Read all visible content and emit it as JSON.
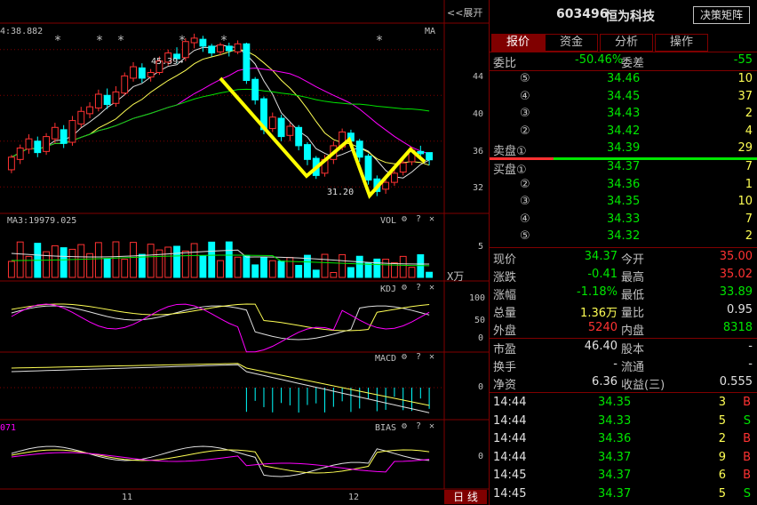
{
  "stock": {
    "code": "603496",
    "name": "恒为科技",
    "decision_button": "决策矩阵"
  },
  "expand_button": "<<展开",
  "tabs": [
    {
      "label": "报价",
      "active": true
    },
    {
      "label": "资金",
      "active": false
    },
    {
      "label": "分析",
      "active": false
    },
    {
      "label": "操作",
      "active": false
    }
  ],
  "weibi": {
    "label": "委比",
    "value": "-50.46%",
    "diff_label": "委差",
    "diff_value": "-55"
  },
  "sell_orders": [
    {
      "label": "⑤",
      "price": "34.46",
      "volume": "10"
    },
    {
      "label": "④",
      "price": "34.45",
      "volume": "37"
    },
    {
      "label": "③",
      "price": "34.43",
      "volume": "2"
    },
    {
      "label": "②",
      "price": "34.42",
      "volume": "4"
    },
    {
      "label": "卖盘①",
      "price": "34.39",
      "volume": "29"
    }
  ],
  "buy_orders": [
    {
      "label": "买盘①",
      "price": "34.37",
      "volume": "7"
    },
    {
      "label": "②",
      "price": "34.36",
      "volume": "1"
    },
    {
      "label": "③",
      "price": "34.35",
      "volume": "10"
    },
    {
      "label": "④",
      "price": "34.33",
      "volume": "7"
    },
    {
      "label": "⑤",
      "price": "34.32",
      "volume": "2"
    }
  ],
  "quote": [
    {
      "l1": "现价",
      "v1": "34.37",
      "c1": "green",
      "l2": "今开",
      "v2": "35.00",
      "c2": "red"
    },
    {
      "l1": "涨跌",
      "v1": "-0.41",
      "c1": "green",
      "l2": "最高",
      "v2": "35.02",
      "c2": "red"
    },
    {
      "l1": "涨幅",
      "v1": "-1.18%",
      "c1": "green",
      "l2": "最低",
      "v2": "33.89",
      "c2": "green"
    },
    {
      "l1": "总量",
      "v1": "1.36万",
      "c1": "yellow",
      "l2": "量比",
      "v2": "0.95",
      "c2": "white"
    },
    {
      "l1": "外盘",
      "v1": "5240",
      "c1": "red",
      "l2": "内盘",
      "v2": "8318",
      "c2": "green"
    }
  ],
  "fundamentals": [
    {
      "l1": "市盈",
      "v1": "46.40",
      "l2": "股本",
      "v2": "-"
    },
    {
      "l1": "换手",
      "v1": "-",
      "l2": "流通",
      "v2": "-"
    },
    {
      "l1": "净资",
      "v1": "6.36",
      "l2": "收益(三)",
      "v2": "0.555"
    }
  ],
  "ticks": [
    {
      "time": "14:44",
      "price": "34.35",
      "vol": "3",
      "side": "B"
    },
    {
      "time": "14:44",
      "price": "34.33",
      "vol": "5",
      "side": "S"
    },
    {
      "time": "14:44",
      "price": "34.36",
      "vol": "2",
      "side": "B"
    },
    {
      "time": "14:44",
      "price": "34.37",
      "vol": "9",
      "side": "B"
    },
    {
      "time": "14:45",
      "price": "34.37",
      "vol": "6",
      "side": "B"
    },
    {
      "time": "14:45",
      "price": "34.37",
      "vol": "5",
      "side": "S"
    }
  ],
  "chart": {
    "top_left": "4:38.882",
    "top_right": "MA",
    "high_label": "45.39→",
    "low_label": "31.20",
    "price_axis": [
      "44",
      "40",
      "36",
      "32"
    ],
    "vol_label": "MA3:19979.025",
    "vol_name": "VOL",
    "vol_axis": [
      "5"
    ],
    "vol_unit": "X万",
    "kdj_name": "KDJ",
    "kdj_axis": [
      "100",
      "50",
      "0"
    ],
    "macd_name": "MACD",
    "macd_axis": [
      "0"
    ],
    "bias_label": "071",
    "bias_name": "BIAS",
    "bias_axis": [
      "0"
    ],
    "x_labels": [
      "11",
      "12"
    ],
    "period_button": "日 线",
    "gear_icon": "⚙",
    "help_icon": "?",
    "close_icon": "✕"
  },
  "chart_data": {
    "type": "candlestick",
    "price_ylim": [
      30,
      46
    ],
    "candles": [
      [
        33.5,
        34.6,
        33.2,
        34.8
      ],
      [
        34.4,
        35.4,
        34.0,
        35.7
      ],
      [
        35.3,
        36.2,
        34.9,
        36.6
      ],
      [
        36.0,
        35.0,
        34.6,
        36.4
      ],
      [
        35.1,
        36.4,
        34.8,
        36.7
      ],
      [
        36.2,
        37.2,
        35.8,
        37.6
      ],
      [
        37.0,
        35.8,
        35.4,
        37.4
      ],
      [
        35.9,
        37.8,
        35.6,
        38.2
      ],
      [
        37.5,
        38.6,
        37.2,
        39.0
      ],
      [
        38.4,
        39.0,
        38.0,
        39.4
      ],
      [
        38.9,
        40.1,
        38.6,
        40.5
      ],
      [
        40.0,
        39.2,
        38.8,
        40.6
      ],
      [
        39.3,
        40.3,
        39.0,
        40.8
      ],
      [
        40.2,
        41.7,
        40.0,
        42.0
      ],
      [
        41.5,
        42.5,
        41.2,
        42.9
      ],
      [
        42.4,
        41.5,
        41.1,
        42.8
      ],
      [
        41.6,
        42.0,
        41.2,
        42.3
      ],
      [
        42.0,
        43.0,
        41.8,
        43.4
      ],
      [
        42.9,
        43.7,
        42.6,
        44.0
      ],
      [
        43.6,
        43.2,
        42.8,
        44.2
      ],
      [
        43.3,
        44.7,
        43.0,
        45.0
      ],
      [
        44.6,
        45.0,
        44.1,
        45.39
      ],
      [
        44.9,
        44.3,
        43.8,
        45.2
      ],
      [
        44.3,
        43.7,
        43.4,
        44.5
      ],
      [
        43.8,
        44.4,
        43.5,
        44.6
      ],
      [
        44.3,
        43.9,
        43.4,
        44.6
      ],
      [
        43.8,
        44.5,
        43.6,
        44.8
      ],
      [
        44.5,
        41.3,
        41.0,
        44.6
      ],
      [
        41.4,
        39.6,
        39.2,
        41.6
      ],
      [
        39.7,
        37.0,
        36.6,
        39.9
      ],
      [
        37.1,
        38.1,
        36.8,
        38.5
      ],
      [
        38.0,
        36.4,
        36.0,
        38.3
      ],
      [
        36.5,
        37.3,
        36.0,
        37.6
      ],
      [
        37.2,
        35.6,
        35.2,
        37.4
      ],
      [
        35.7,
        34.4,
        33.9,
        35.9
      ],
      [
        34.5,
        33.0,
        32.7,
        34.7
      ],
      [
        33.2,
        34.4,
        32.9,
        34.8
      ],
      [
        34.4,
        35.6,
        34.0,
        36.0
      ],
      [
        35.5,
        36.8,
        35.2,
        37.1
      ],
      [
        36.7,
        36.0,
        35.6,
        37.0
      ],
      [
        36.0,
        34.6,
        34.2,
        36.2
      ],
      [
        34.7,
        32.6,
        32.2,
        34.9
      ],
      [
        32.7,
        31.6,
        31.2,
        33.0
      ],
      [
        31.8,
        32.4,
        31.4,
        32.8
      ],
      [
        32.4,
        33.2,
        32.1,
        33.5
      ],
      [
        33.3,
        34.1,
        33.0,
        34.4
      ],
      [
        34.2,
        35.2,
        33.9,
        35.5
      ],
      [
        35.1,
        34.9,
        34.6,
        35.6
      ],
      [
        35.0,
        34.37,
        33.89,
        35.02
      ]
    ]
  }
}
